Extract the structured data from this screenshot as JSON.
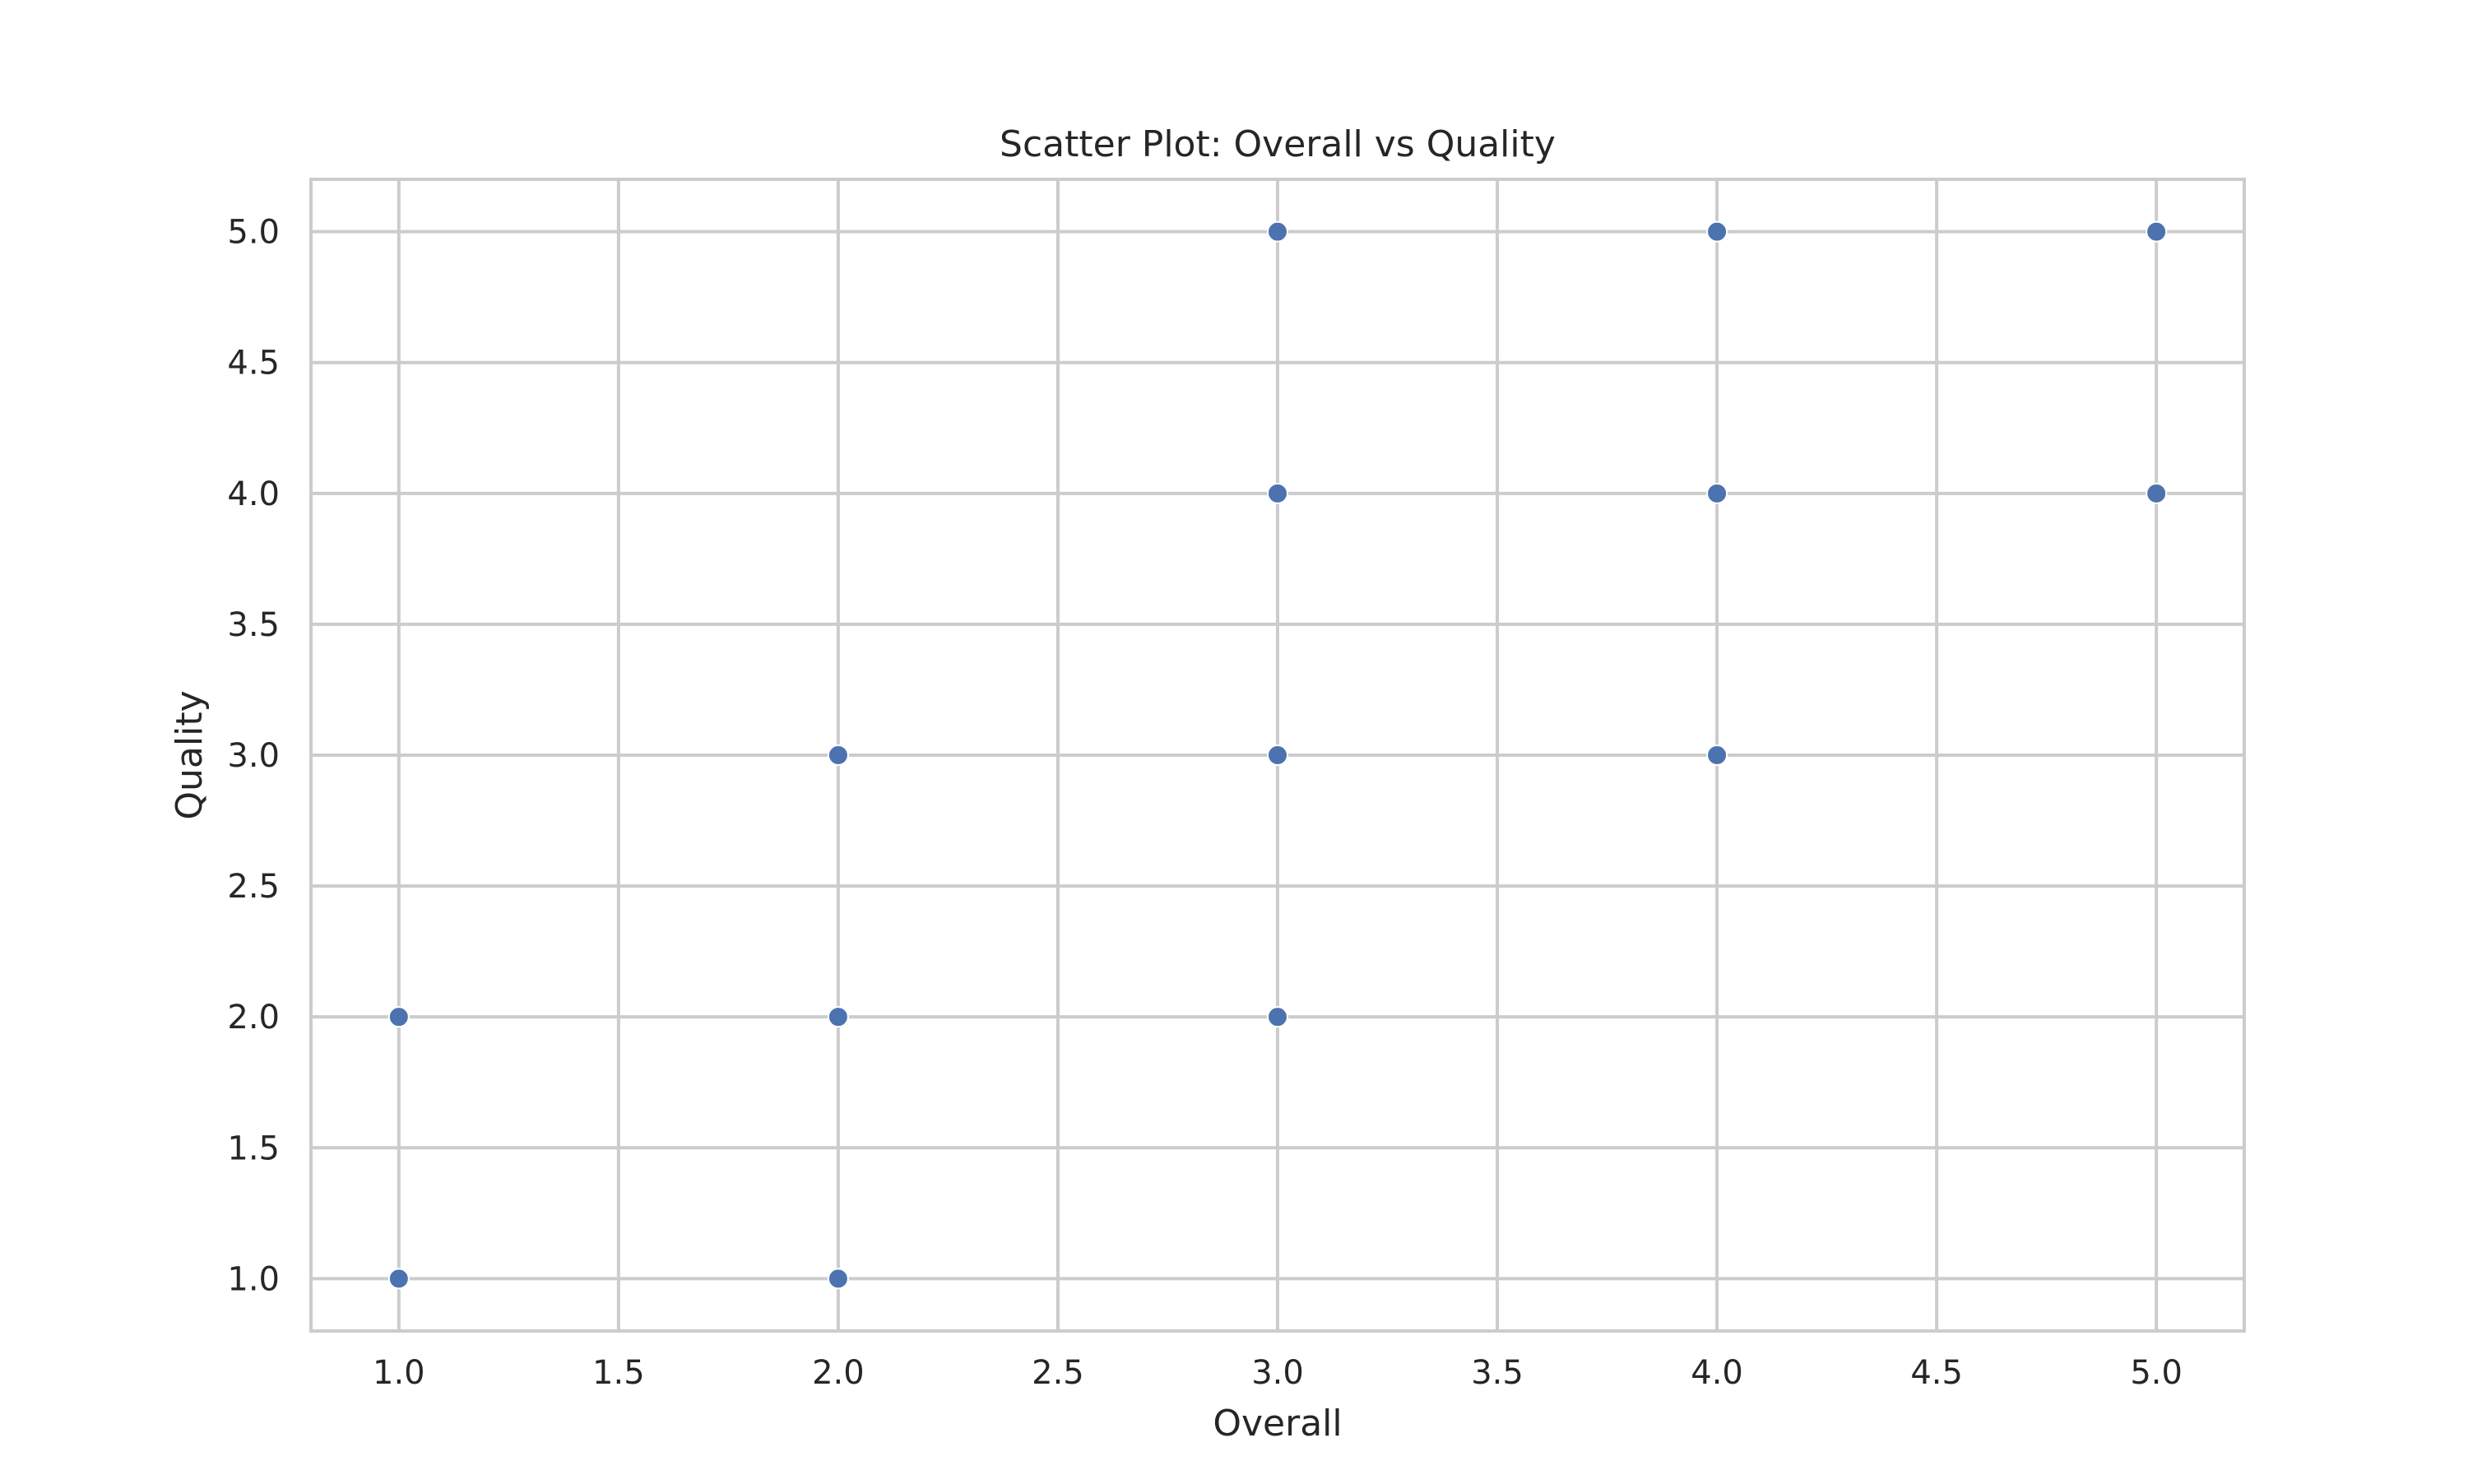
{
  "chart_data": {
    "type": "scatter",
    "title": "Scatter Plot: Overall vs Quality",
    "xlabel": "Overall",
    "ylabel": "Quality",
    "xlim": [
      0.8,
      5.2
    ],
    "ylim": [
      0.8,
      5.2
    ],
    "xticks": [
      1.0,
      1.5,
      2.0,
      2.5,
      3.0,
      3.5,
      4.0,
      4.5,
      5.0
    ],
    "yticks": [
      1.0,
      1.5,
      2.0,
      2.5,
      3.0,
      3.5,
      4.0,
      4.5,
      5.0
    ],
    "xtick_labels": [
      "1.0",
      "1.5",
      "2.0",
      "2.5",
      "3.0",
      "3.5",
      "4.0",
      "4.5",
      "5.0"
    ],
    "ytick_labels": [
      "1.0",
      "1.5",
      "2.0",
      "2.5",
      "3.0",
      "3.5",
      "4.0",
      "4.5",
      "5.0"
    ],
    "grid": true,
    "marker_color": "#4c72b0",
    "marker_edge_color": "#ffffff",
    "grid_color": "#cccccc",
    "spine_color": "#cccccc",
    "points": [
      {
        "x": 1,
        "y": 1
      },
      {
        "x": 1,
        "y": 2
      },
      {
        "x": 2,
        "y": 1
      },
      {
        "x": 2,
        "y": 2
      },
      {
        "x": 2,
        "y": 3
      },
      {
        "x": 3,
        "y": 2
      },
      {
        "x": 3,
        "y": 3
      },
      {
        "x": 3,
        "y": 4
      },
      {
        "x": 3,
        "y": 5
      },
      {
        "x": 4,
        "y": 3
      },
      {
        "x": 4,
        "y": 4
      },
      {
        "x": 4,
        "y": 5
      },
      {
        "x": 5,
        "y": 4
      },
      {
        "x": 5,
        "y": 5
      }
    ]
  }
}
